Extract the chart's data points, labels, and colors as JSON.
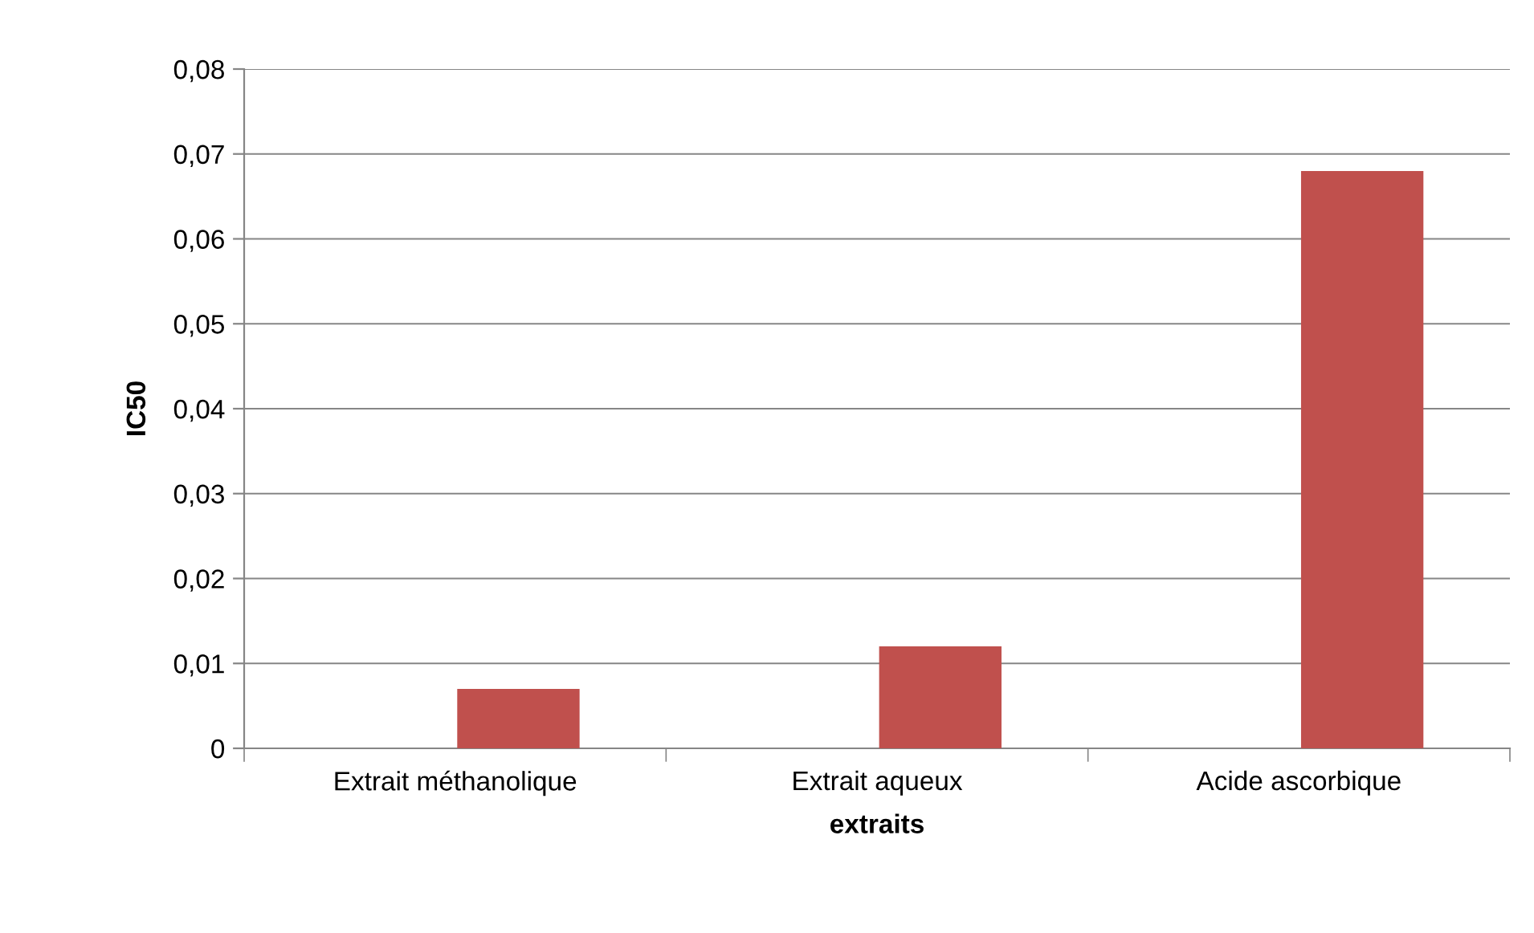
{
  "chart_data": {
    "type": "bar",
    "xlabel": "extraits",
    "ylabel": "IC50",
    "categories": [
      "Extrait méthanolique",
      "Extrait aqueux",
      "Acide ascorbique"
    ],
    "values": [
      0.007,
      0.012,
      0.068
    ],
    "color": "#c0504d",
    "ylim": [
      0,
      0.08
    ],
    "yticks": [
      0,
      {
        "value": 0.01,
        "label": "0,01"
      },
      {
        "value": 0.02,
        "label": "0,02"
      },
      {
        "value": 0.03,
        "label": "0,03"
      },
      {
        "value": 0.04,
        "label": "0,04"
      },
      {
        "value": 0.05,
        "label": "0,05"
      },
      {
        "value": 0.06,
        "label": "0,06"
      },
      {
        "value": 0.07,
        "label": "0,07"
      },
      {
        "value": 0.08,
        "label": "0,08"
      }
    ],
    "grid": "y",
    "legend": false
  }
}
